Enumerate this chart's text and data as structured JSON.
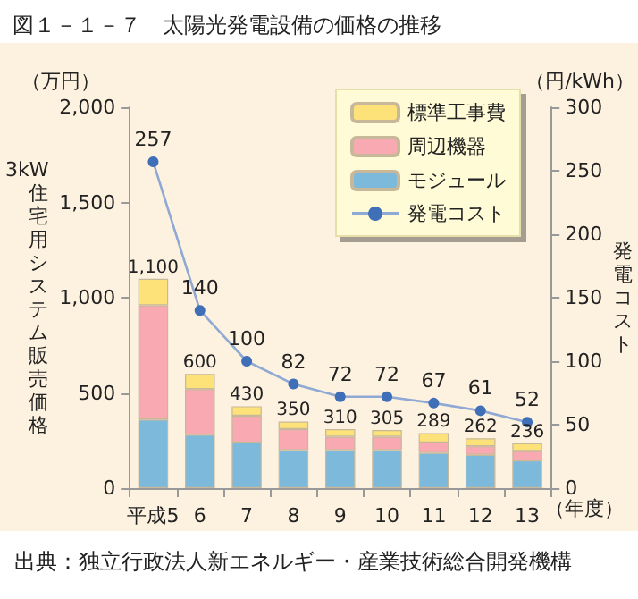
{
  "chart_data": {
    "type": "bar",
    "stacked": true,
    "title": "図１－１－７　太陽光発電設備の価格の推移",
    "ylabel": "3kW住宅用システム販売価格",
    "y2label": "発電コスト",
    "categories": [
      "平成5",
      "6",
      "7",
      "8",
      "9",
      "10",
      "11",
      "12",
      "13"
    ],
    "series": [
      {
        "name": "モジュール",
        "color": "#7db9db",
        "values": [
          360,
          280,
          240,
          200,
          200,
          200,
          185,
          175,
          145
        ]
      },
      {
        "name": "周辺機器",
        "color": "#f9a9b2",
        "values": [
          600,
          240,
          140,
          110,
          70,
          70,
          55,
          45,
          50
        ]
      },
      {
        "name": "標準工事費",
        "color": "#fde27a",
        "values": [
          140,
          80,
          50,
          40,
          40,
          35,
          49,
          42,
          41
        ]
      },
      {
        "name": "発電コスト",
        "type": "line",
        "axis": "y2",
        "color": "#3f6fb7",
        "values": [
          257,
          140,
          100,
          82,
          72,
          72,
          67,
          61,
          52
        ],
        "value_labels": [
          "257",
          "140",
          "100",
          "82",
          "72",
          "72",
          "67",
          "61",
          "52"
        ]
      }
    ],
    "totals": [
      "1,100",
      "600",
      "430",
      "350",
      "310",
      "305",
      "289",
      "262",
      "236"
    ],
    "ylim": [
      0,
      2000
    ],
    "yticks": [
      0,
      {
        "value": 500,
        "label": "500"
      },
      {
        "value": 1000,
        "label": "1,000"
      },
      {
        "value": 1500,
        "label": "1,500"
      },
      {
        "value": 2000,
        "label": "2,000"
      }
    ],
    "y2lim": [
      0,
      300
    ],
    "y2ticks": [
      0,
      50,
      100,
      150,
      200,
      250,
      300
    ],
    "marker": "circle",
    "grid": false,
    "legend": "top right",
    "annotations": [
      "（万円）",
      "（円/kWh）",
      "（年度）",
      "出典：独立行政法人新エネルギー・産業技術総合開発機構"
    ]
  }
}
